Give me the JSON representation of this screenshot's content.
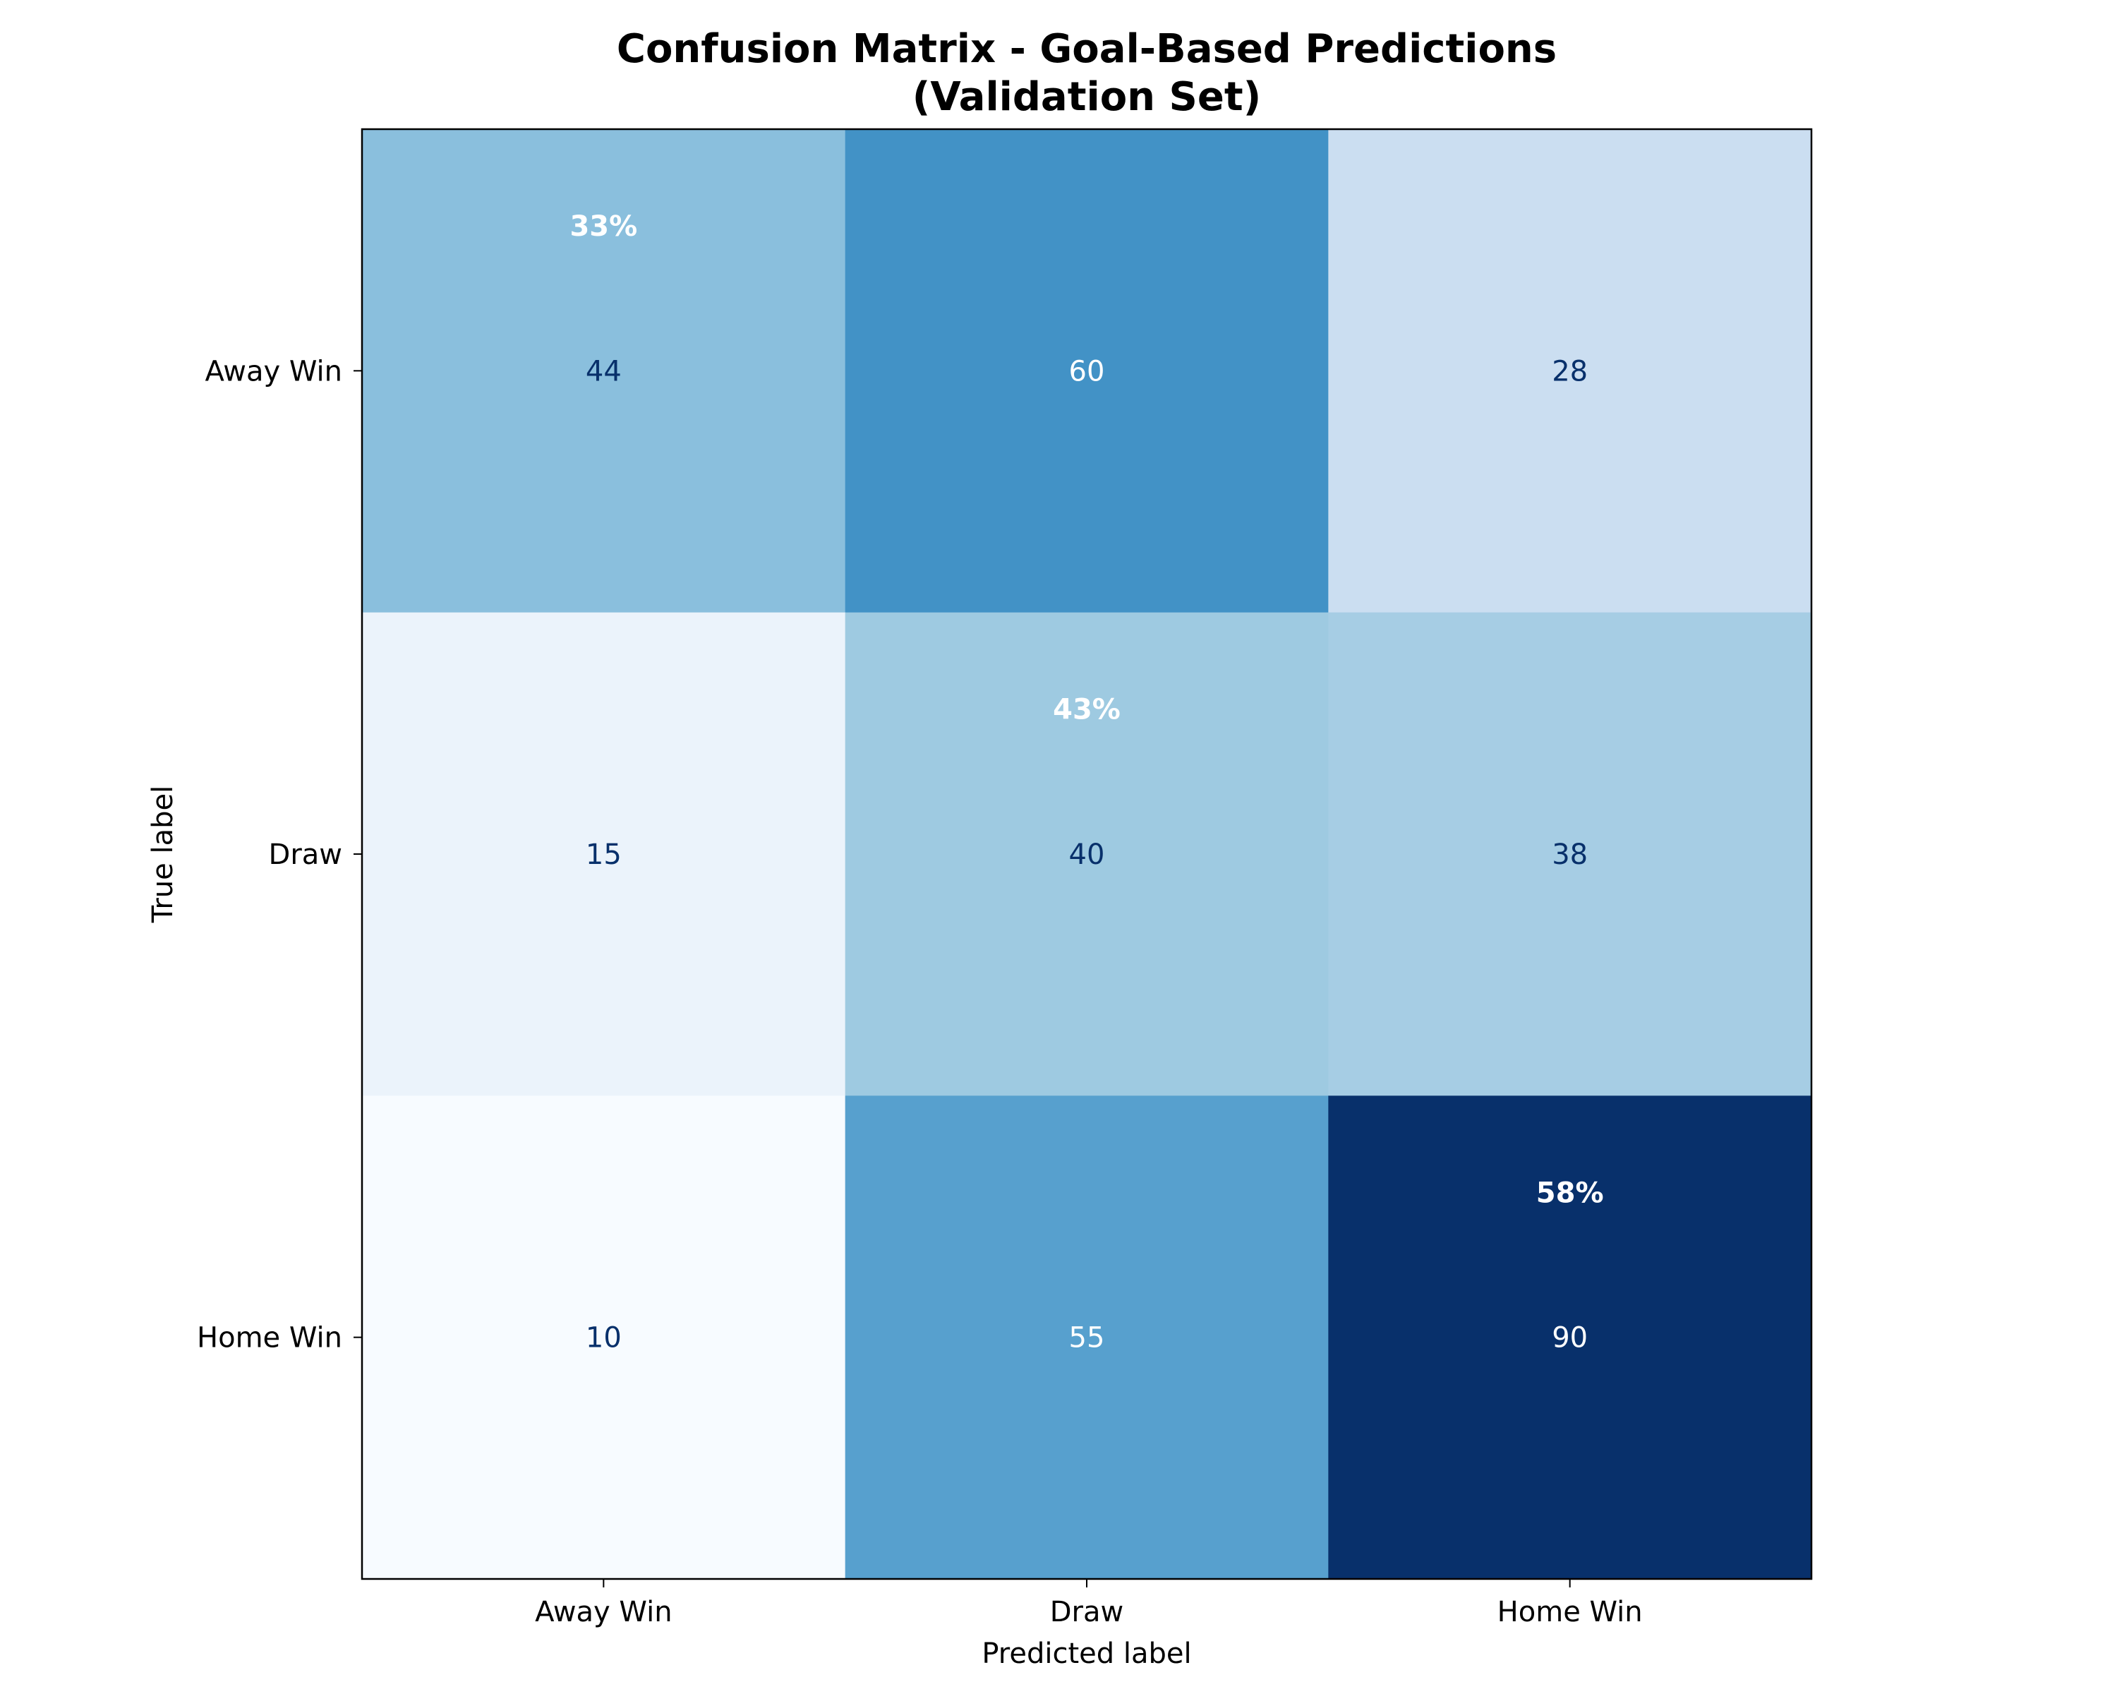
{
  "chart_data": {
    "type": "heatmap",
    "title_line1": "Confusion Matrix - Goal-Based Predictions",
    "title_line2": "(Validation Set)",
    "xlabel": "Predicted label",
    "ylabel": "True label",
    "x_categories": [
      "Away Win",
      "Draw",
      "Home Win"
    ],
    "y_categories": [
      "Away Win",
      "Draw",
      "Home Win"
    ],
    "values": [
      [
        44,
        60,
        28
      ],
      [
        15,
        40,
        38
      ],
      [
        10,
        55,
        90
      ]
    ],
    "diagonal_percentages": [
      "33%",
      "43%",
      "58%"
    ],
    "colormap": "Blues",
    "value_range": [
      10,
      90
    ],
    "grid": false,
    "legend": "none"
  }
}
